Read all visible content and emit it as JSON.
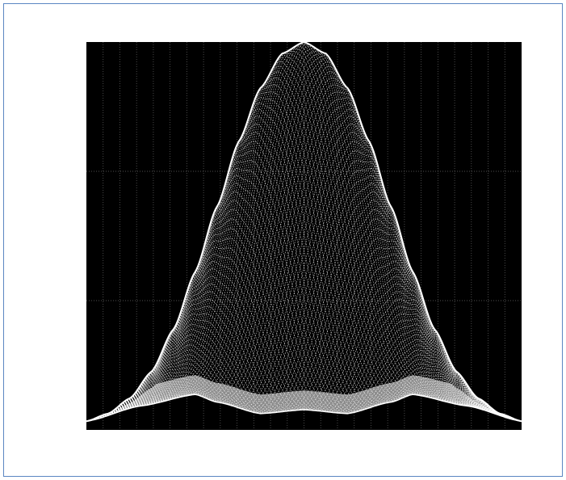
{
  "figure": {
    "frame_color": "#5b86c2",
    "background": "#000000",
    "foreground": "#ffffff"
  },
  "chart_data": {
    "type": "area",
    "title": "",
    "xlabel": "",
    "ylabel": "",
    "grid": true,
    "grid_style": "dotted",
    "vertical_gridlines": 26,
    "horizontal_gridlines": 2,
    "xlim": [
      -1,
      1
    ],
    "ylim": [
      0,
      1
    ],
    "envelope": {
      "shape": "gaussian-like peak with dense lattice fill",
      "x": [
        -1.0,
        -0.9,
        -0.8,
        -0.7,
        -0.6,
        -0.5,
        -0.4,
        -0.3,
        -0.2,
        -0.1,
        0.0,
        0.1,
        0.2,
        0.3,
        0.4,
        0.5,
        0.6,
        0.7,
        0.8,
        0.9,
        1.0
      ],
      "y": [
        0.01,
        0.03,
        0.07,
        0.14,
        0.25,
        0.4,
        0.57,
        0.74,
        0.88,
        0.97,
        1.0,
        0.97,
        0.88,
        0.74,
        0.57,
        0.4,
        0.25,
        0.14,
        0.07,
        0.03,
        0.01
      ]
    },
    "lower_envelope": {
      "shape": "ripple with three lobes",
      "x": [
        -1.0,
        -0.75,
        -0.5,
        -0.4,
        -0.2,
        0.0,
        0.2,
        0.4,
        0.5,
        0.75,
        1.0
      ],
      "y": [
        0.01,
        0.05,
        0.08,
        0.06,
        0.03,
        0.04,
        0.03,
        0.06,
        0.08,
        0.05,
        0.01
      ]
    }
  }
}
